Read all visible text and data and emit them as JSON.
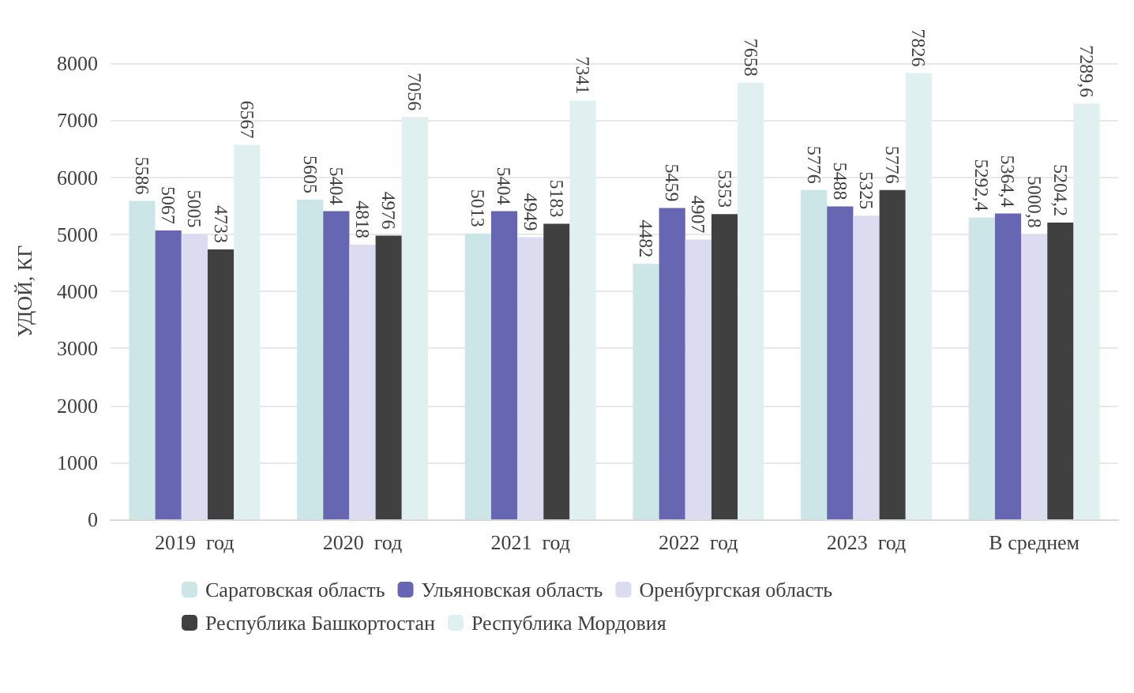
{
  "chart_data": {
    "type": "bar",
    "ylabel": "УДОЙ, КГ",
    "categories": [
      "2019  год",
      "2020  год",
      "2021  год",
      "2022  год",
      "2023  год",
      "В среднем"
    ],
    "series": [
      {
        "name": "Саратовская область",
        "color": "#cce6e8",
        "values": [
          5586,
          5605,
          5013,
          4482,
          5776,
          5292.4
        ],
        "value_labels": [
          "5586",
          "5605",
          "5013",
          "4482",
          "5776",
          "5292,4"
        ]
      },
      {
        "name": "Ульяновская область",
        "color": "#6666b3",
        "values": [
          5067,
          5404,
          5404,
          5459,
          5488,
          5364.4
        ],
        "value_labels": [
          "5067",
          "5404",
          "5404",
          "5459",
          "5488",
          "5364,4"
        ]
      },
      {
        "name": "Оренбургская область",
        "color": "#dcdcf0",
        "values": [
          5005,
          4818,
          4949,
          4907,
          5325,
          5000.8
        ],
        "value_labels": [
          "5005",
          "4818",
          "4949",
          "4907",
          "5325",
          "5000,8"
        ]
      },
      {
        "name": "Республика Башкортостан",
        "color": "#404040",
        "values": [
          4733,
          4976,
          5183,
          5353,
          5776,
          5204.2
        ],
        "value_labels": [
          "4733",
          "4976",
          "5183",
          "5353",
          "5776",
          "5204,2"
        ]
      },
      {
        "name": "Республика Мордовия",
        "color": "#e0f0f0",
        "values": [
          6567,
          7056,
          7341,
          7658,
          7826,
          7289.6
        ],
        "value_labels": [
          "6567",
          "7056",
          "7341",
          "7658",
          "7826",
          "7289,6"
        ]
      }
    ],
    "ylim": [
      0,
      8000
    ],
    "yticks": [
      0,
      1000,
      2000,
      3000,
      4000,
      5000,
      6000,
      7000,
      8000
    ],
    "grid": "y",
    "legend": "bottom"
  }
}
